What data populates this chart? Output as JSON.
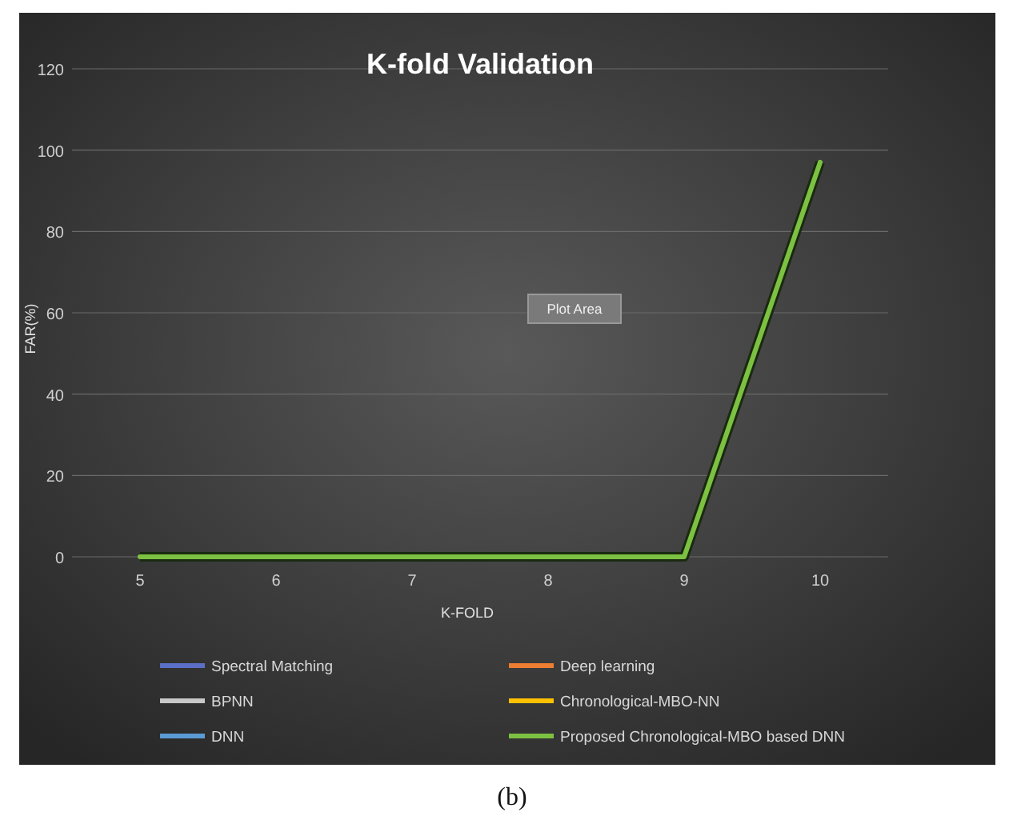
{
  "chart_data": {
    "type": "line",
    "title": "K-fold Validation",
    "xlabel": "K-FOLD",
    "ylabel": "FAR(%)",
    "categories": [
      "5",
      "6",
      "7",
      "8",
      "9",
      "10"
    ],
    "ylim": [
      0,
      120
    ],
    "yticks": [
      0,
      20,
      40,
      60,
      80,
      100,
      120
    ],
    "grid": "y",
    "legend": "bottom",
    "marker": "none",
    "line_style": "solid",
    "series": [
      {
        "name": "Spectral Matching",
        "color": "#5b6fc9",
        "values": [
          null,
          null,
          null,
          null,
          null,
          null
        ]
      },
      {
        "name": "Deep learning",
        "color": "#ed7d31",
        "values": [
          null,
          null,
          null,
          null,
          null,
          null
        ]
      },
      {
        "name": "BPNN",
        "color": "#c8c8c8",
        "values": [
          null,
          null,
          null,
          null,
          null,
          null
        ]
      },
      {
        "name": "Chronological-MBO-NN",
        "color": "#ffc000",
        "values": [
          null,
          null,
          null,
          null,
          null,
          null
        ]
      },
      {
        "name": "DNN",
        "color": "#5b9bd5",
        "values": [
          null,
          null,
          null,
          null,
          null,
          null
        ]
      },
      {
        "name": "Proposed Chronological-MBO based DNN",
        "color": "#7cc142",
        "values": [
          0,
          0,
          0,
          0,
          0,
          97
        ]
      }
    ],
    "annotations": [
      "Plot Area",
      "(b)"
    ]
  }
}
